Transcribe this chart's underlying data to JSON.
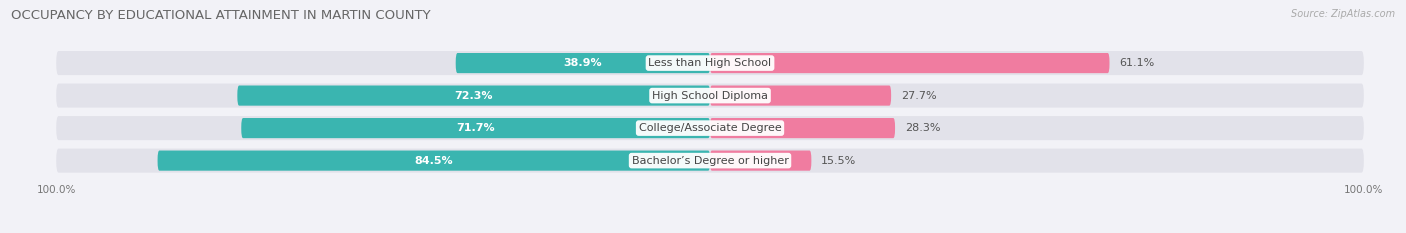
{
  "title": "OCCUPANCY BY EDUCATIONAL ATTAINMENT IN MARTIN COUNTY",
  "source": "Source: ZipAtlas.com",
  "categories": [
    "Less than High School",
    "High School Diploma",
    "College/Associate Degree",
    "Bachelor’s Degree or higher"
  ],
  "owner_pct": [
    38.9,
    72.3,
    71.7,
    84.5
  ],
  "renter_pct": [
    61.1,
    27.7,
    28.3,
    15.5
  ],
  "owner_color": "#3ab5b0",
  "renter_color": "#f07ca0",
  "bg_color": "#f2f2f7",
  "bar_bg_color": "#e2e2ea",
  "title_color": "#666666",
  "source_color": "#aaaaaa",
  "label_color": "#555555",
  "owner_label_inside_color": "#ffffff",
  "owner_label_outside_color": "#555555",
  "renter_label_color": "#555555",
  "title_fontsize": 9.5,
  "source_fontsize": 7,
  "bar_label_fontsize": 8,
  "cat_label_fontsize": 8,
  "legend_fontsize": 8,
  "axis_label_fontsize": 7.5,
  "owner_inside_threshold": 15
}
